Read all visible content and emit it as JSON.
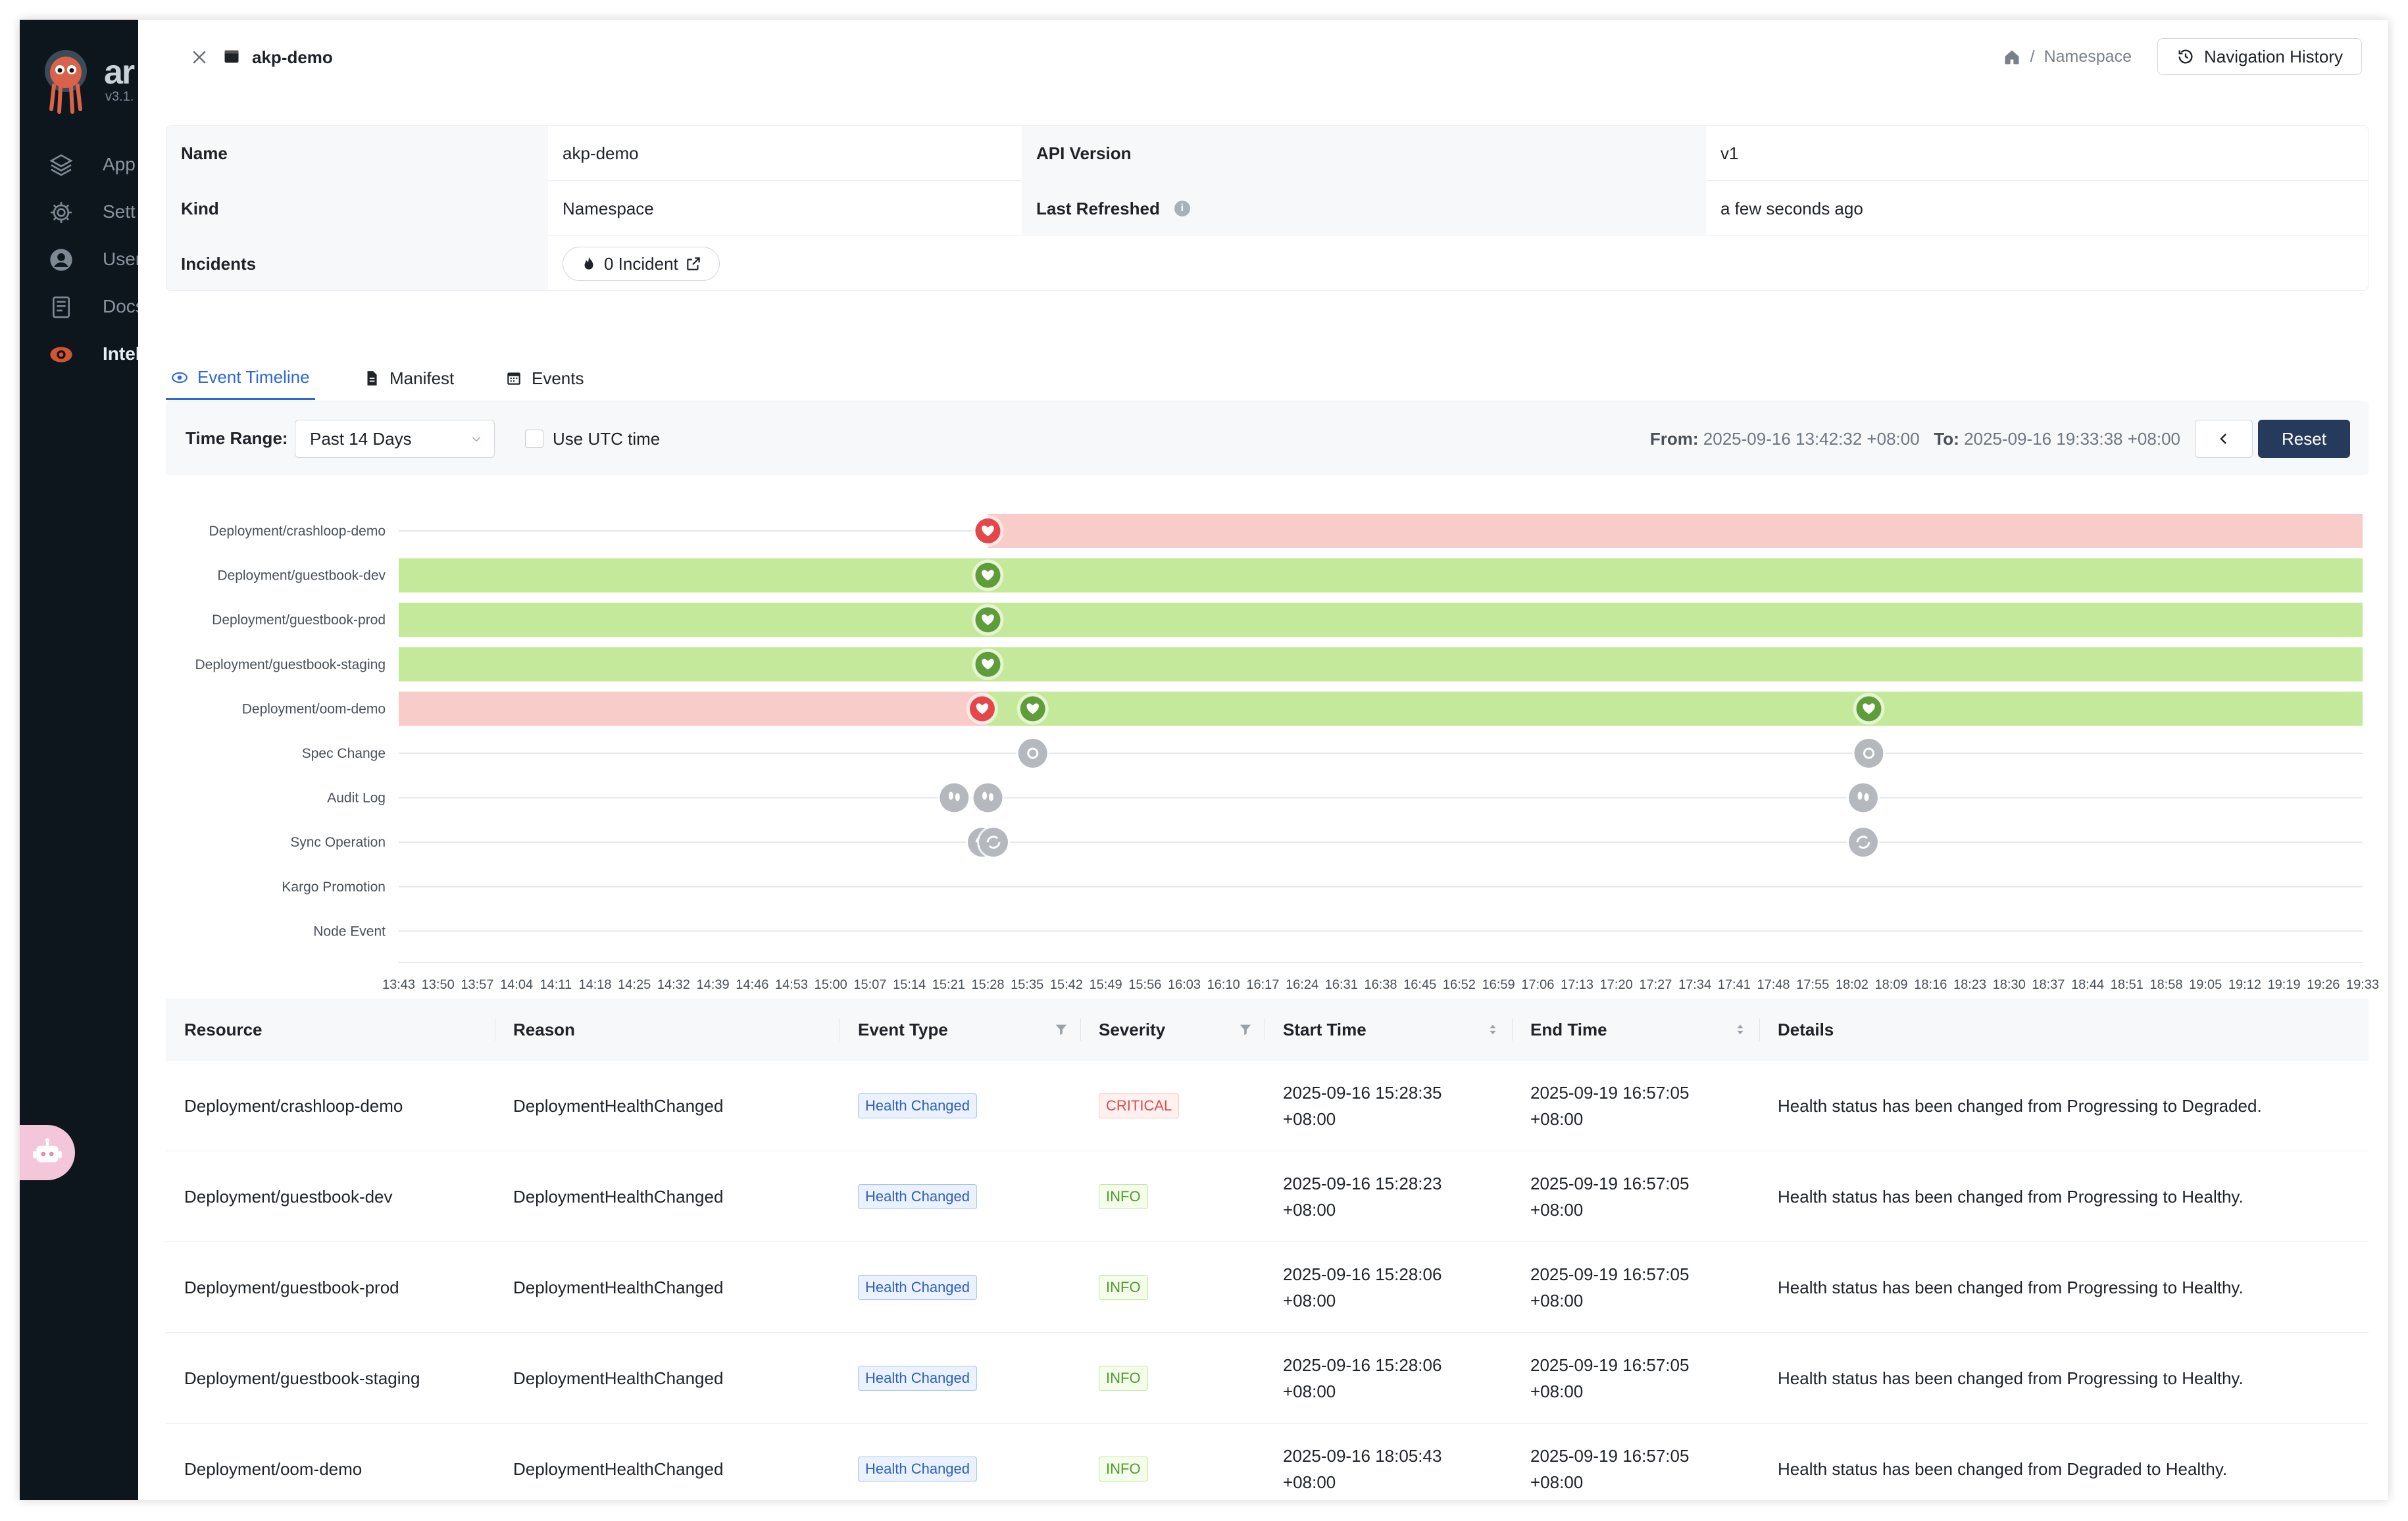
{
  "sidebar": {
    "brand": "ar",
    "version": "v3.1.",
    "items": [
      {
        "label": "App",
        "icon": "layers-icon"
      },
      {
        "label": "Sett",
        "icon": "gear-icon"
      },
      {
        "label": "User",
        "icon": "user-icon"
      },
      {
        "label": "Docs",
        "icon": "book-icon"
      },
      {
        "label": "Intel",
        "icon": "eye-icon",
        "active": true
      }
    ],
    "assistant_icon": "robot-icon"
  },
  "header": {
    "title": "akp-demo",
    "breadcrumb_separator": "/",
    "breadcrumb_current": "Namespace",
    "nav_history_label": "Navigation History"
  },
  "summary": {
    "name_key": "Name",
    "name_value": "akp-demo",
    "api_key": "API Version",
    "api_value": "v1",
    "kind_key": "Kind",
    "kind_value": "Namespace",
    "refreshed_key": "Last Refreshed",
    "refreshed_value": "a few seconds ago",
    "incidents_key": "Incidents",
    "incidents_value": "0 Incident"
  },
  "tabs": [
    {
      "label": "Event Timeline",
      "active": true
    },
    {
      "label": "Manifest"
    },
    {
      "label": "Events"
    }
  ],
  "toolbar": {
    "time_range_label": "Time Range:",
    "time_range_value": "Past 14 Days",
    "utc_label": "Use UTC time",
    "from_label": "From:",
    "from_value": "2025-09-16 13:42:32 +08:00",
    "to_label": "To:",
    "to_value": "2025-09-16 19:33:38 +08:00",
    "reset_label": "Reset"
  },
  "timeline": {
    "rows": [
      {
        "label": "Deployment/crashloop-demo",
        "segments": [
          {
            "from": "15:28",
            "to": "19:33",
            "status": "degraded"
          }
        ],
        "markers": [
          {
            "t": "15:28",
            "kind": "heart",
            "status": "degraded"
          }
        ]
      },
      {
        "label": "Deployment/guestbook-dev",
        "segments": [
          {
            "from": "13:43",
            "to": "19:33",
            "status": "healthy"
          }
        ],
        "markers": [
          {
            "t": "15:28",
            "kind": "heart",
            "status": "healthy"
          }
        ]
      },
      {
        "label": "Deployment/guestbook-prod",
        "segments": [
          {
            "from": "13:43",
            "to": "19:33",
            "status": "healthy"
          }
        ],
        "markers": [
          {
            "t": "15:28",
            "kind": "heart",
            "status": "healthy"
          }
        ]
      },
      {
        "label": "Deployment/guestbook-staging",
        "segments": [
          {
            "from": "13:43",
            "to": "19:33",
            "status": "healthy"
          }
        ],
        "markers": [
          {
            "t": "15:28",
            "kind": "heart",
            "status": "healthy"
          }
        ]
      },
      {
        "label": "Deployment/oom-demo",
        "segments": [
          {
            "from": "13:43",
            "to": "15:28",
            "status": "degraded"
          },
          {
            "from": "15:28",
            "to": "19:33",
            "status": "healthy"
          }
        ],
        "markers": [
          {
            "t": "15:27",
            "kind": "heart",
            "status": "degraded"
          },
          {
            "t": "15:36",
            "kind": "heart",
            "status": "healthy"
          },
          {
            "t": "18:05",
            "kind": "heart",
            "status": "healthy"
          }
        ]
      },
      {
        "label": "Spec Change",
        "segments": [],
        "markers": [
          {
            "t": "15:36",
            "kind": "gear",
            "status": "neutral"
          },
          {
            "t": "18:05",
            "kind": "gear",
            "status": "neutral"
          }
        ]
      },
      {
        "label": "Audit Log",
        "segments": [],
        "markers": [
          {
            "t": "15:22",
            "kind": "steps",
            "status": "neutral"
          },
          {
            "t": "15:28",
            "kind": "steps",
            "status": "neutral"
          },
          {
            "t": "18:04",
            "kind": "steps",
            "status": "neutral"
          }
        ]
      },
      {
        "label": "Sync Operation",
        "segments": [],
        "markers": [
          {
            "t": "15:27",
            "kind": "sync",
            "status": "neutral"
          },
          {
            "t": "15:29",
            "kind": "sync",
            "status": "neutral"
          },
          {
            "t": "18:04",
            "kind": "sync",
            "status": "neutral"
          }
        ]
      },
      {
        "label": "Kargo Promotion",
        "segments": [],
        "markers": []
      },
      {
        "label": "Node Event",
        "segments": [],
        "markers": []
      }
    ],
    "ticks": [
      "13:43",
      "13:50",
      "13:57",
      "14:04",
      "14:11",
      "14:18",
      "14:25",
      "14:32",
      "14:39",
      "14:46",
      "14:53",
      "15:00",
      "15:07",
      "15:14",
      "15:21",
      "15:28",
      "15:35",
      "15:42",
      "15:49",
      "15:56",
      "16:03",
      "16:10",
      "16:17",
      "16:24",
      "16:31",
      "16:38",
      "16:45",
      "16:52",
      "16:59",
      "17:06",
      "17:13",
      "17:20",
      "17:27",
      "17:34",
      "17:41",
      "17:48",
      "17:55",
      "18:02",
      "18:09",
      "18:16",
      "18:23",
      "18:30",
      "18:37",
      "18:44",
      "18:51",
      "18:58",
      "19:05",
      "19:12",
      "19:19",
      "19:26",
      "19:33"
    ],
    "colors": {
      "healthy": "#c5e99b",
      "degraded": "#f8cdc9",
      "heart_healthy": "#5e9d3a",
      "heart_degraded": "#e4474a",
      "neutral": "#b5b9be"
    }
  },
  "table": {
    "columns": [
      "Resource",
      "Reason",
      "Event Type",
      "Severity",
      "Start Time",
      "End Time",
      "Details"
    ],
    "rows": [
      {
        "resource": "Deployment/crashloop-demo",
        "reason": "DeploymentHealthChanged",
        "event_type": "Health Changed",
        "severity": "CRITICAL",
        "severity_color": "red",
        "start": "2025-09-16 15:28:35",
        "start_tz": "+08:00",
        "end": "2025-09-19 16:57:05",
        "end_tz": "+08:00",
        "details": "Health status has been changed from Progressing to Degraded."
      },
      {
        "resource": "Deployment/guestbook-dev",
        "reason": "DeploymentHealthChanged",
        "event_type": "Health Changed",
        "severity": "INFO",
        "severity_color": "green",
        "start": "2025-09-16 15:28:23",
        "start_tz": "+08:00",
        "end": "2025-09-19 16:57:05",
        "end_tz": "+08:00",
        "details": "Health status has been changed from Progressing to Healthy."
      },
      {
        "resource": "Deployment/guestbook-prod",
        "reason": "DeploymentHealthChanged",
        "event_type": "Health Changed",
        "severity": "INFO",
        "severity_color": "green",
        "start": "2025-09-16 15:28:06",
        "start_tz": "+08:00",
        "end": "2025-09-19 16:57:05",
        "end_tz": "+08:00",
        "details": "Health status has been changed from Progressing to Healthy."
      },
      {
        "resource": "Deployment/guestbook-staging",
        "reason": "DeploymentHealthChanged",
        "event_type": "Health Changed",
        "severity": "INFO",
        "severity_color": "green",
        "start": "2025-09-16 15:28:06",
        "start_tz": "+08:00",
        "end": "2025-09-19 16:57:05",
        "end_tz": "+08:00",
        "details": "Health status has been changed from Progressing to Healthy."
      },
      {
        "resource": "Deployment/oom-demo",
        "reason": "DeploymentHealthChanged",
        "event_type": "Health Changed",
        "severity": "INFO",
        "severity_color": "green",
        "start": "2025-09-16 18:05:43",
        "start_tz": "+08:00",
        "end": "2025-09-19 16:57:05",
        "end_tz": "+08:00",
        "details": "Health status has been changed from Degraded to Healthy."
      }
    ]
  }
}
